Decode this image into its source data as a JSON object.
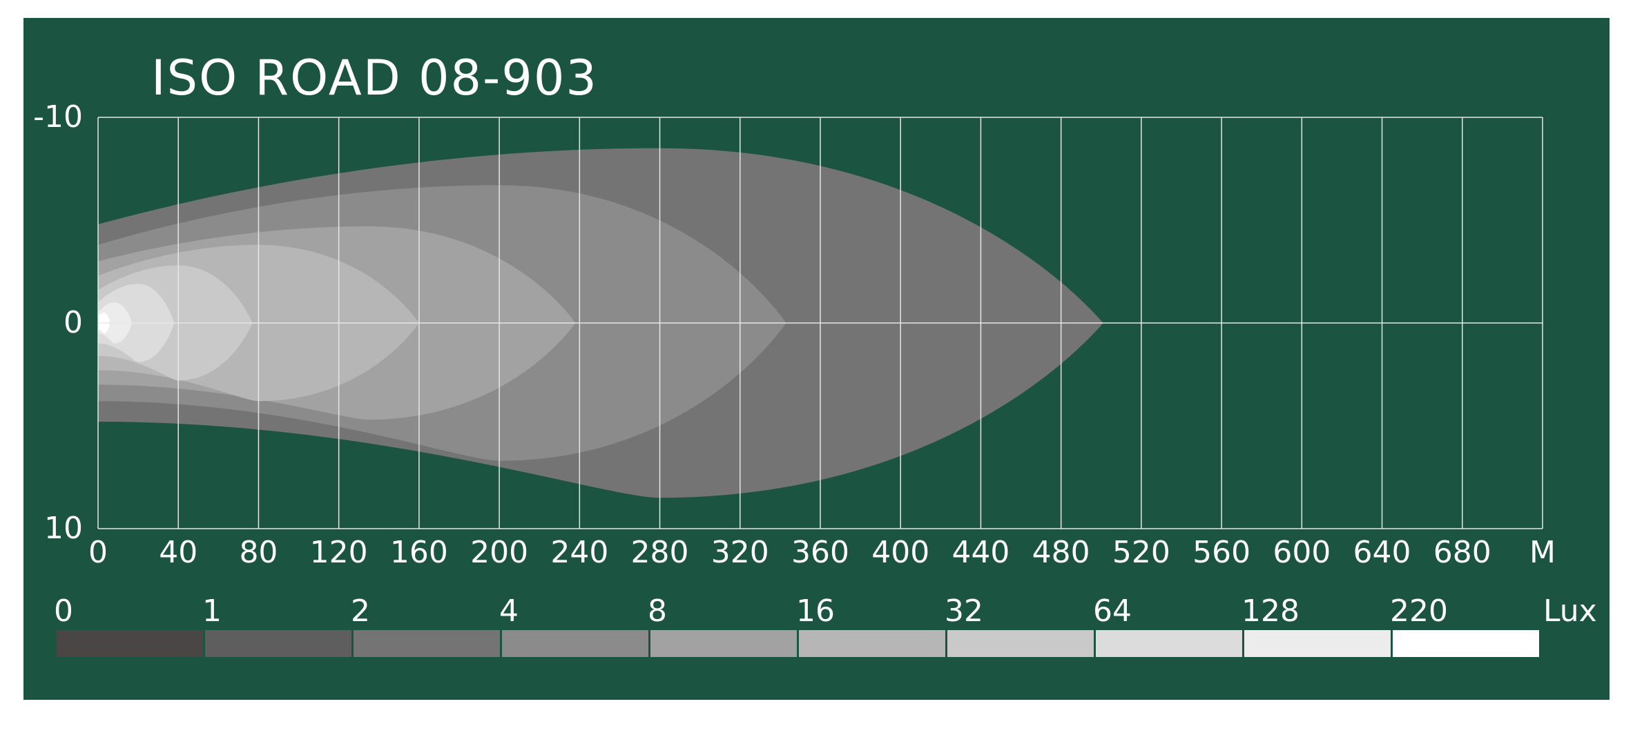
{
  "colors": {
    "background": "#1b5440",
    "grid": "#e6e6e6",
    "text": "#ffffff"
  },
  "chart_data": {
    "type": "heatmap",
    "title": "ISO ROAD 08-903",
    "x_unit": "M",
    "legend_unit": "Lux",
    "xlim": [
      0,
      720
    ],
    "ylim": [
      -10,
      10
    ],
    "x_ticks": [
      "0",
      "40",
      "80",
      "120",
      "160",
      "200",
      "240",
      "280",
      "320",
      "360",
      "400",
      "440",
      "480",
      "520",
      "560",
      "600",
      "640",
      "680"
    ],
    "y_ticks": [
      "-10",
      "0",
      "10"
    ],
    "legend": [
      {
        "label": "0",
        "color": "#4a4646"
      },
      {
        "label": "1",
        "color": "#5e5e5e"
      },
      {
        "label": "2",
        "color": "#747474"
      },
      {
        "label": "4",
        "color": "#8b8b8b"
      },
      {
        "label": "8",
        "color": "#a2a2a2"
      },
      {
        "label": "16",
        "color": "#b6b6b6"
      },
      {
        "label": "32",
        "color": "#c9c9c9"
      },
      {
        "label": "64",
        "color": "#dcdcdc"
      },
      {
        "label": "128",
        "color": "#ececec"
      },
      {
        "label": "220",
        "color": "#ffffff"
      }
    ],
    "isolux_contours": [
      {
        "lux": "1",
        "color": "#747474",
        "reach_m": 501,
        "start_half_width_m": 4.8,
        "max_half_width_m": 8.5,
        "peak_at_m": 280
      },
      {
        "lux": "2",
        "color": "#8b8b8b",
        "reach_m": 343,
        "start_half_width_m": 3.8,
        "max_half_width_m": 6.7,
        "peak_at_m": 200
      },
      {
        "lux": "4",
        "color": "#a2a2a2",
        "reach_m": 238,
        "start_half_width_m": 3.0,
        "max_half_width_m": 4.7,
        "peak_at_m": 135
      },
      {
        "lux": "8",
        "color": "#b6b6b6",
        "reach_m": 160,
        "start_half_width_m": 2.3,
        "max_half_width_m": 3.8,
        "peak_at_m": 80
      },
      {
        "lux": "16",
        "color": "#c9c9c9",
        "reach_m": 77,
        "start_half_width_m": 1.6,
        "max_half_width_m": 2.8,
        "peak_at_m": 40
      },
      {
        "lux": "32",
        "color": "#dcdcdc",
        "reach_m": 38,
        "start_half_width_m": 1.0,
        "max_half_width_m": 1.9,
        "peak_at_m": 20
      },
      {
        "lux": "64",
        "color": "#ececec",
        "reach_m": 17,
        "start_half_width_m": 0.5,
        "max_half_width_m": 1.0,
        "peak_at_m": 8
      },
      {
        "lux": "128",
        "color": "#ffffff",
        "reach_m": 6,
        "start_half_width_m": 0.3,
        "max_half_width_m": 0.5,
        "peak_at_m": 3
      }
    ]
  }
}
